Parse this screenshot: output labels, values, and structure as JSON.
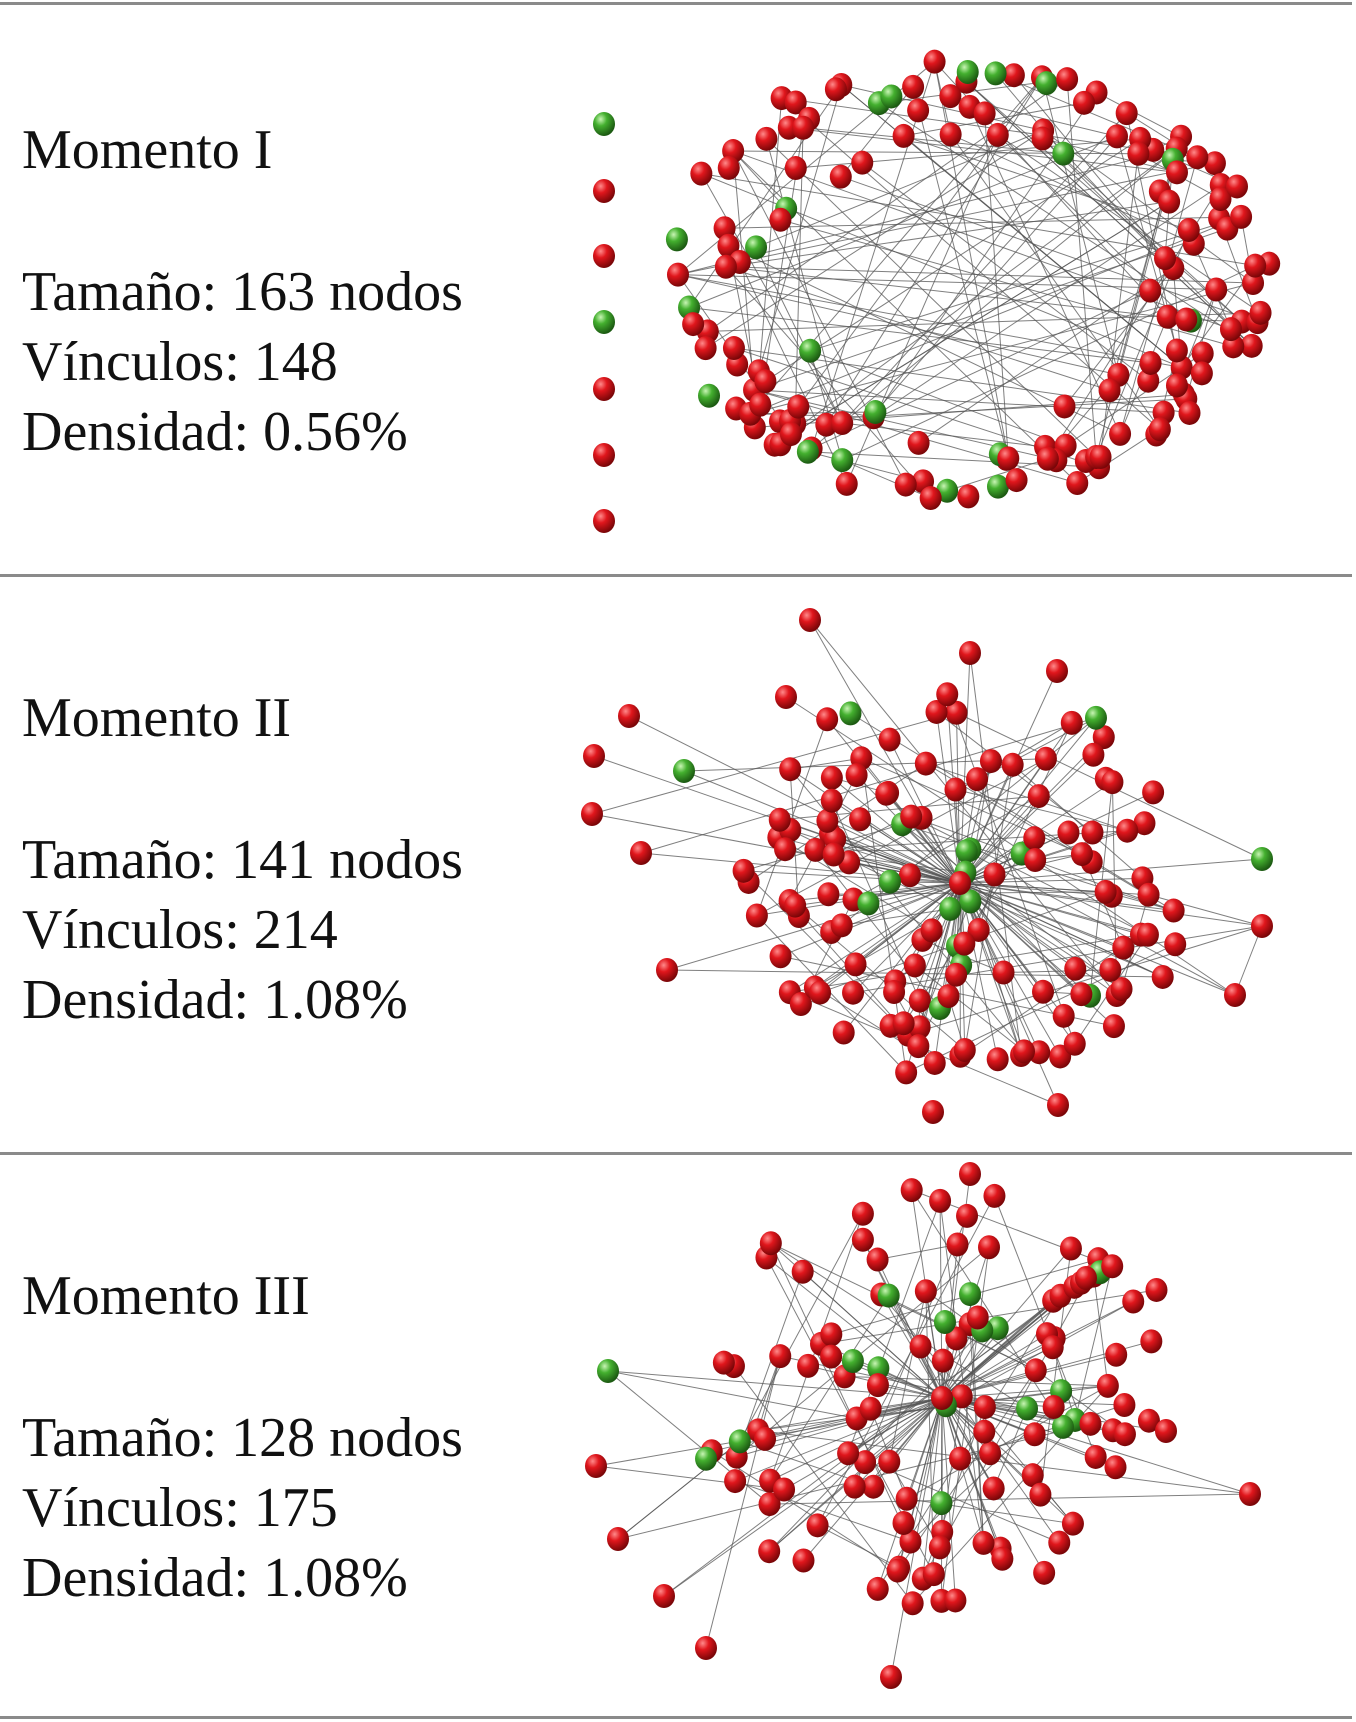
{
  "colors": {
    "primary_node": "#d0141a",
    "secondary_node": "#3fa02e",
    "edge": "#555555",
    "rule": "#8a8a8a"
  },
  "panels": [
    {
      "title": "Momento I",
      "size": "Tamaño: 163 nodos",
      "links": "Vínculos: 148",
      "density": "Densidad: 0.56%"
    },
    {
      "title": "Momento II",
      "size": "Tamaño: 141 nodos",
      "links": "Vínculos: 214",
      "density": "Densidad: 1.08%"
    },
    {
      "title": "Momento III",
      "size": "Tamaño: 128 nodos",
      "links": "Vínculos: 175",
      "density": "Densidad: 1.08%"
    }
  ]
}
